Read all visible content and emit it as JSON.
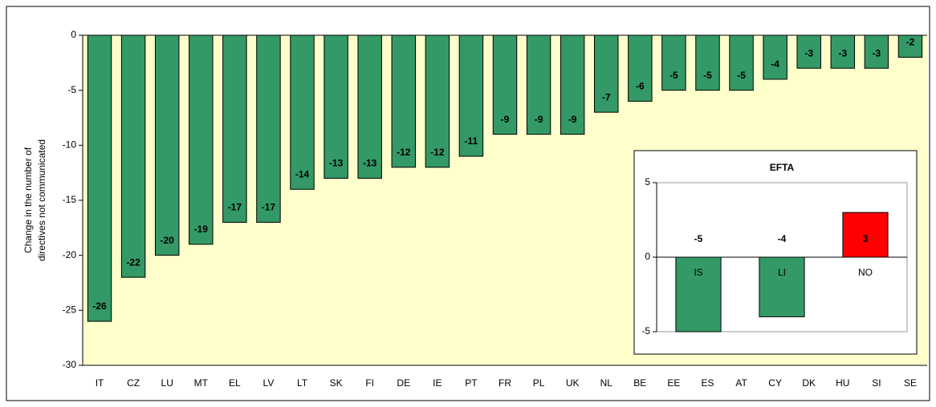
{
  "chart_data": [
    {
      "type": "bar",
      "ylabel": [
        "Change in the number of",
        "directives not communicated"
      ],
      "categories": [
        "IT",
        "CZ",
        "LU",
        "MT",
        "EL",
        "LV",
        "LT",
        "SK",
        "FI",
        "DE",
        "IE",
        "PT",
        "FR",
        "PL",
        "UK",
        "NL",
        "BE",
        "EE",
        "ES",
        "AT",
        "CY",
        "DK",
        "HU",
        "SI",
        "SE"
      ],
      "values": [
        -26,
        -22,
        -20,
        -19,
        -17,
        -17,
        -14,
        -13,
        -13,
        -12,
        -12,
        -11,
        -9,
        -9,
        -9,
        -7,
        -6,
        -5,
        -5,
        -5,
        -4,
        -3,
        -3,
        -3,
        -2
      ],
      "color": "#339966",
      "ylim": [
        -30,
        0
      ],
      "yticks": [
        0,
        -5,
        -10,
        -15,
        -20,
        -25,
        -30
      ]
    },
    {
      "type": "bar",
      "title": "EFTA",
      "categories": [
        "IS",
        "LI",
        "NO"
      ],
      "values": [
        -5,
        -4,
        3
      ],
      "colors": [
        "#339966",
        "#339966",
        "#ff0000"
      ],
      "ylim": [
        -5,
        5
      ],
      "yticks": [
        5,
        0,
        -5
      ]
    }
  ]
}
